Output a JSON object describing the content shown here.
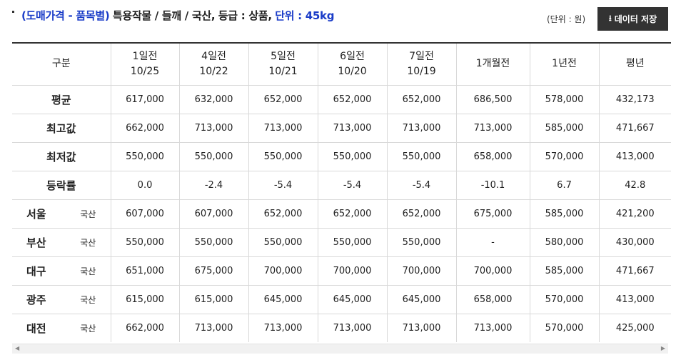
{
  "header": {
    "title_part1": "(도매가격 - 품목별)",
    "title_part2": "특용작물 / 들깨 / 국산,",
    "title_part3": "등급 : 상품,",
    "title_part4": "단위 : 45kg",
    "unit_label": "(단위 : 원)",
    "download_label": "데이터 저장",
    "download_icon": "download-arrow-icon"
  },
  "table": {
    "header_category": "구분",
    "columns": [
      {
        "line1": "1일전",
        "line2": "10/25"
      },
      {
        "line1": "4일전",
        "line2": "10/22"
      },
      {
        "line1": "5일전",
        "line2": "10/21"
      },
      {
        "line1": "6일전",
        "line2": "10/20"
      },
      {
        "line1": "7일전",
        "line2": "10/19"
      },
      {
        "line1": "1개월전",
        "line2": ""
      },
      {
        "line1": "1년전",
        "line2": ""
      },
      {
        "line1": "평년",
        "line2": ""
      }
    ],
    "summary_rows": [
      {
        "label": "평균",
        "values": [
          "617,000",
          "632,000",
          "652,000",
          "652,000",
          "652,000",
          "686,500",
          "578,000",
          "432,173"
        ]
      },
      {
        "label": "최고값",
        "values": [
          "662,000",
          "713,000",
          "713,000",
          "713,000",
          "713,000",
          "713,000",
          "585,000",
          "471,667"
        ]
      },
      {
        "label": "최저값",
        "values": [
          "550,000",
          "550,000",
          "550,000",
          "550,000",
          "550,000",
          "658,000",
          "570,000",
          "413,000"
        ]
      },
      {
        "label": "등락률",
        "values": [
          "0.0",
          "-2.4",
          "-5.4",
          "-5.4",
          "-5.4",
          "-10.1",
          "6.7",
          "42.8"
        ]
      }
    ],
    "city_rows": [
      {
        "city": "서울",
        "origin": "국산",
        "values": [
          "607,000",
          "607,000",
          "652,000",
          "652,000",
          "652,000",
          "675,000",
          "585,000",
          "421,200"
        ]
      },
      {
        "city": "부산",
        "origin": "국산",
        "values": [
          "550,000",
          "550,000",
          "550,000",
          "550,000",
          "550,000",
          "-",
          "580,000",
          "430,000"
        ]
      },
      {
        "city": "대구",
        "origin": "국산",
        "values": [
          "651,000",
          "675,000",
          "700,000",
          "700,000",
          "700,000",
          "700,000",
          "585,000",
          "471,667"
        ]
      },
      {
        "city": "광주",
        "origin": "국산",
        "values": [
          "615,000",
          "615,000",
          "645,000",
          "645,000",
          "645,000",
          "658,000",
          "570,000",
          "413,000"
        ]
      },
      {
        "city": "대전",
        "origin": "국산",
        "values": [
          "662,000",
          "713,000",
          "713,000",
          "713,000",
          "713,000",
          "713,000",
          "570,000",
          "425,000"
        ]
      }
    ]
  }
}
